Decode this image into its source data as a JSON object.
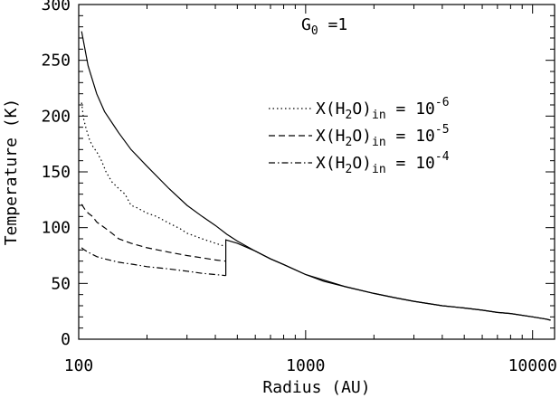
{
  "chart_data": {
    "type": "line",
    "title": "",
    "xlabel": "Radius (AU)",
    "ylabel": "Temperature (K)",
    "xscale": "log",
    "xlim": [
      100,
      12500
    ],
    "ylim": [
      0,
      300
    ],
    "grid": false,
    "legend_position": "top-right",
    "x_ticks": [
      100,
      1000,
      10000
    ],
    "x_tick_labels": [
      "100",
      "1000",
      "10000"
    ],
    "y_ticks": [
      0,
      50,
      100,
      150,
      200,
      250,
      300
    ],
    "y_tick_labels": [
      "0",
      "50",
      "100",
      "150",
      "200",
      "250",
      "300"
    ],
    "annotation": {
      "base": "G",
      "sub": "0",
      "rest": " =1"
    },
    "series": [
      {
        "name": "",
        "style": "solid",
        "x": [
          103,
          110,
          120,
          130,
          150,
          170,
          200,
          250,
          300,
          350,
          400,
          450,
          500,
          600,
          700,
          800,
          1000,
          1200,
          1500,
          2000,
          2500,
          3000,
          4000,
          5000,
          6000,
          7000,
          8000,
          10000,
          11500,
          12000
        ],
        "y": [
          276,
          245,
          220,
          204,
          185,
          170,
          155,
          135,
          120,
          110,
          102,
          94,
          88,
          79,
          72,
          67,
          58,
          53,
          47,
          41,
          37,
          34,
          30,
          28,
          26,
          24,
          23,
          20,
          18,
          17
        ]
      },
      {
        "name": "X(H2O)in = 10^-6",
        "style": "dotted",
        "x": [
          103,
          105,
          108,
          112,
          116,
          120,
          126,
          132,
          140,
          150,
          160,
          170,
          180,
          200,
          220,
          250,
          280,
          300,
          350,
          400,
          445
        ],
        "y": [
          212,
          198,
          188,
          178,
          172,
          168,
          160,
          150,
          141,
          135,
          130,
          120,
          118,
          113,
          110,
          104,
          99,
          95,
          90,
          86,
          83
        ]
      },
      {
        "name": "X(H2O)in = 10^-5",
        "style": "dashed",
        "x": [
          103,
          106,
          110,
          115,
          120,
          130,
          140,
          150,
          170,
          200,
          250,
          300,
          350,
          400,
          445
        ],
        "y": [
          121,
          117,
          113,
          110,
          105,
          100,
          95,
          90,
          86,
          82,
          78,
          75,
          73,
          71,
          70
        ]
      },
      {
        "name": "X(H2O)in = 10^-4",
        "style": "dashdot",
        "x": [
          103,
          106,
          110,
          115,
          120,
          130,
          150,
          175,
          200,
          250,
          300,
          350,
          400,
          445
        ],
        "y": [
          82,
          80,
          78,
          76,
          74,
          72,
          69,
          67,
          65,
          63,
          61,
          59,
          58,
          57
        ]
      },
      {
        "name": "",
        "style": "solid",
        "x": [
          445,
          445,
          500,
          600,
          700,
          800,
          1000,
          1200,
          1500,
          2000,
          2500,
          3000,
          4000,
          5000,
          6000,
          7000,
          8000,
          10000,
          11500,
          12000
        ],
        "y": [
          57,
          89,
          86,
          79,
          72,
          67,
          58,
          52,
          47,
          41,
          37,
          34,
          30,
          28,
          26,
          24,
          23,
          20,
          18,
          17
        ]
      }
    ],
    "legend": [
      {
        "style": "dotted",
        "prefix": "X(H",
        "sub1": "2",
        "mid": "O)",
        "sub2": "in",
        "eq": " = 10",
        "exp": "-6"
      },
      {
        "style": "dashed",
        "prefix": "X(H",
        "sub1": "2",
        "mid": "O)",
        "sub2": "in",
        "eq": " = 10",
        "exp": "-5"
      },
      {
        "style": "dashdot",
        "prefix": "X(H",
        "sub1": "2",
        "mid": "O)",
        "sub2": "in",
        "eq": " = 10",
        "exp": "-4"
      }
    ]
  }
}
